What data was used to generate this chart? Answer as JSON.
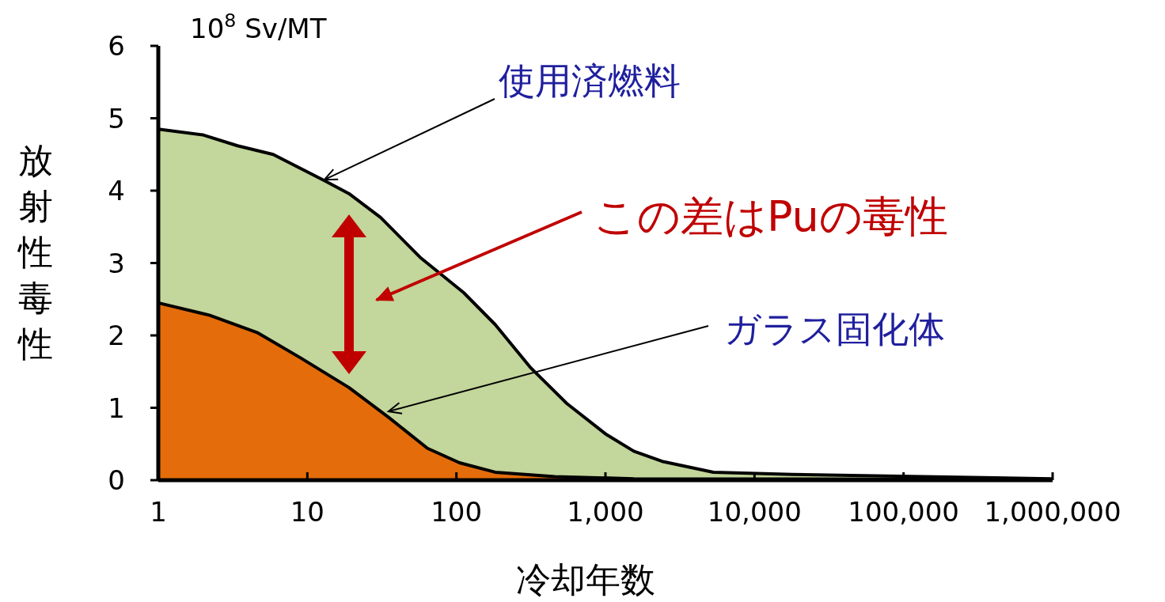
{
  "chart_data": {
    "type": "area",
    "xlabel": "冷却年数",
    "ylabel": "放射性毒性",
    "log": "x",
    "xlim": [
      1,
      1000000
    ],
    "ylim": [
      0,
      6
    ],
    "xticks": [
      1,
      10,
      100,
      {
        "value": 1000,
        "label": "1,000"
      },
      {
        "value": 10000,
        "label": "10,000"
      },
      {
        "value": 100000,
        "label": "100,000"
      },
      {
        "value": 1000000,
        "label": "1,000,000"
      }
    ],
    "yticks": [
      0,
      1,
      2,
      3,
      4,
      5,
      6
    ],
    "grid": false,
    "series": [
      {
        "color": "#c3d69b",
        "x": [
          1,
          2,
          3.4,
          5.9,
          13,
          19,
          31,
          57,
          112,
          182,
          316,
          550,
          1000,
          1550,
          2400,
          5300,
          18000,
          1000000
        ],
        "values": [
          4.85,
          4.77,
          4.62,
          4.5,
          4.14,
          3.96,
          3.63,
          3.08,
          2.59,
          2.15,
          1.55,
          1.06,
          0.64,
          0.4,
          0.26,
          0.11,
          0.08,
          0.02
        ]
      },
      {
        "color": "#e46c0a",
        "x": [
          1,
          2.2,
          4.6,
          9,
          19,
          35,
          64,
          105,
          182,
          457,
          1550,
          1000000
        ],
        "values": [
          2.45,
          2.28,
          2.04,
          1.69,
          1.28,
          0.87,
          0.44,
          0.24,
          0.11,
          0.05,
          0.02,
          0.01
        ]
      }
    ],
    "annotations": [
      "10$^{8}$ Sv/MT",
      {
        "text": "使用済燃料",
        "x": 13,
        "y": 4.15
      },
      "この差はPuの毒性",
      {
        "text": "ガラス固化体",
        "x": 35,
        "y": 0.95
      }
    ]
  }
}
